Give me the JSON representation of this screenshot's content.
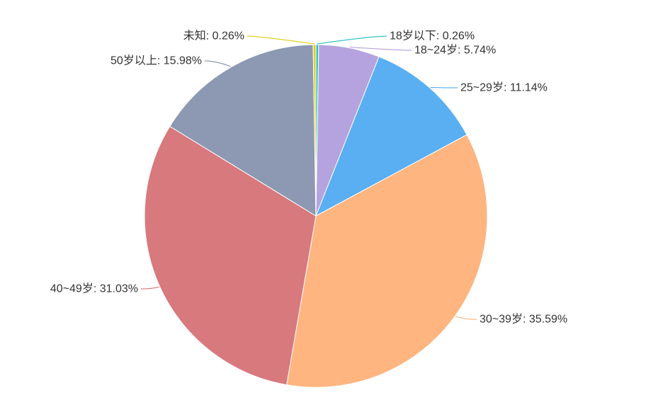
{
  "chart_data": {
    "type": "pie",
    "title": "",
    "slices": [
      {
        "label": "18岁以下: 0.26%",
        "name": "18岁以下",
        "value": 0.26,
        "color": "#34c3c3"
      },
      {
        "label": "18~24岁: 5.74%",
        "name": "18~24岁",
        "value": 5.74,
        "color": "#b5a3df"
      },
      {
        "label": "25~29岁: 11.14%",
        "name": "25~29岁",
        "value": 11.14,
        "color": "#59aff2"
      },
      {
        "label": "30~39岁: 35.59%",
        "name": "30~39岁",
        "value": 35.59,
        "color": "#feb57f"
      },
      {
        "label": "40~49岁: 31.03%",
        "name": "40~49岁",
        "value": 31.03,
        "color": "#d8797e"
      },
      {
        "label": "50岁以上: 15.98%",
        "name": "50岁以上",
        "value": 15.98,
        "color": "#8d99b3"
      },
      {
        "label": "未知: 0.26%",
        "name": "未知",
        "value": 0.26,
        "color": "#e0d020"
      }
    ],
    "start_angle": "top",
    "direction": "clockwise",
    "legend": "none",
    "label_color": "#333333"
  }
}
